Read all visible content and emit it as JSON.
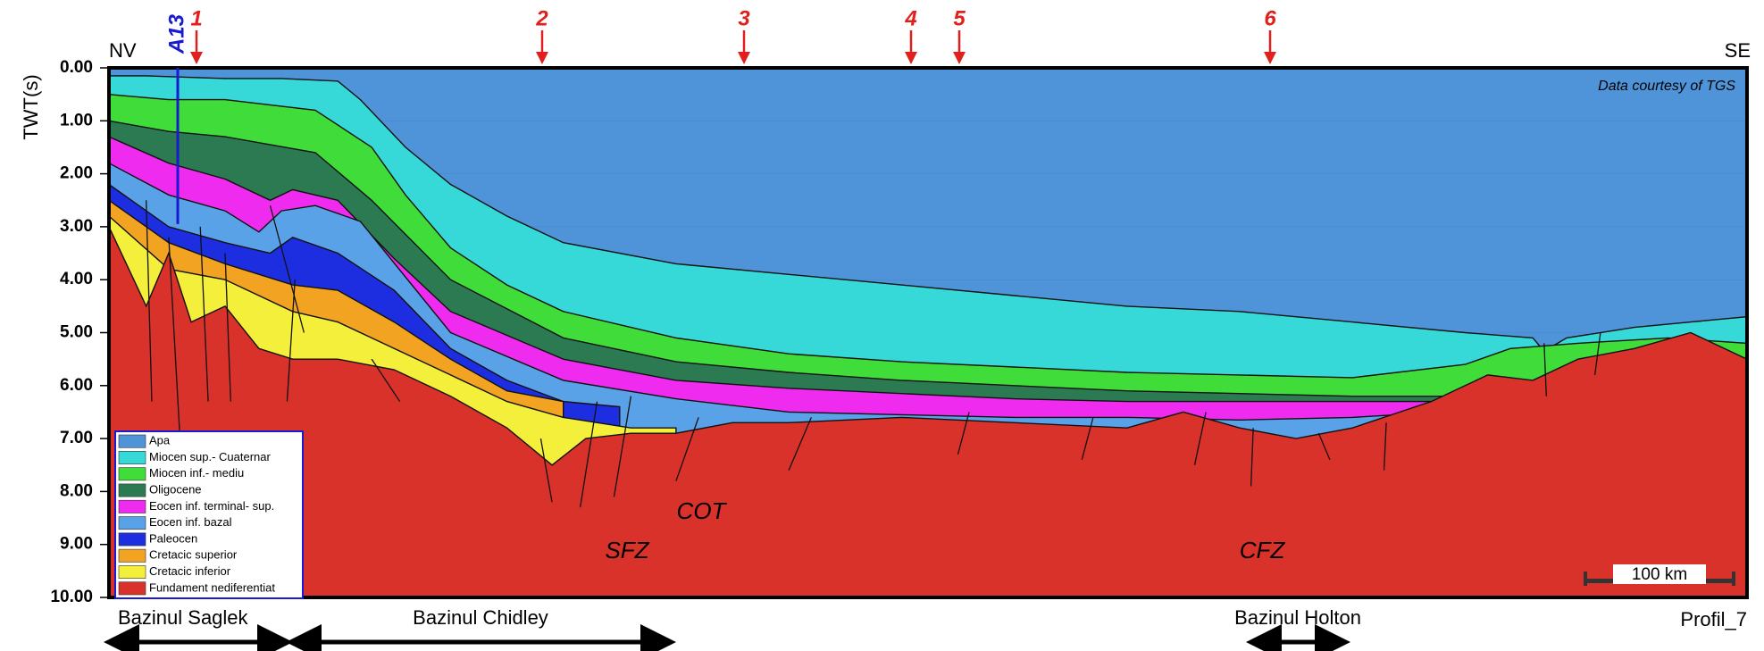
{
  "chart_data": {
    "type": "section",
    "y_label": "TWT(s)",
    "ylim": [
      0,
      10
    ],
    "yticks": [
      {
        "value": 0,
        "label": "0.00"
      },
      {
        "value": 1,
        "label": "1.00"
      },
      {
        "value": 2,
        "label": "2.00"
      },
      {
        "value": 3,
        "label": "3.00"
      },
      {
        "value": 4,
        "label": "4.00"
      },
      {
        "value": 5,
        "label": "5.00"
      },
      {
        "value": 6,
        "label": "6.00"
      },
      {
        "value": 7,
        "label": "7.00"
      },
      {
        "value": 8,
        "label": "8.00"
      },
      {
        "value": 9,
        "label": "9.00"
      },
      {
        "value": 10,
        "label": "10.00"
      }
    ],
    "left_label": "NV",
    "right_label": "SE",
    "well": "A13",
    "markers": [
      "1",
      "2",
      "3",
      "4",
      "5",
      "6"
    ],
    "credit": "Data courtesy of TGS",
    "layers": [
      {
        "name": "Apa",
        "color": "#4f94d9"
      },
      {
        "name": "Miocen sup.- Cuaternar",
        "color": "#36d8d8"
      },
      {
        "name": "Miocen inf.- mediu",
        "color": "#3fdc3a"
      },
      {
        "name": "Oligocene",
        "color": "#2c7a52"
      },
      {
        "name": "Eocen inf. terminal- sup.",
        "color": "#ee2bee"
      },
      {
        "name": "Eocen inf. bazal",
        "color": "#5aa2e8"
      },
      {
        "name": "Paleocen",
        "color": "#1c2ee0"
      },
      {
        "name": "Cretacic superior",
        "color": "#f2a322"
      },
      {
        "name": "Cretacic inferior",
        "color": "#f4ef3a"
      },
      {
        "name": "Fundament nediferentiat",
        "color": "#d8322b"
      }
    ],
    "annotations": [
      "COT",
      "SFZ",
      "CFZ"
    ],
    "basins": [
      "Bazinul Saglek",
      "Bazinul Chidley",
      "Bazinul Holton"
    ],
    "scale_bar": "100 km",
    "profile": "Profil_7"
  }
}
